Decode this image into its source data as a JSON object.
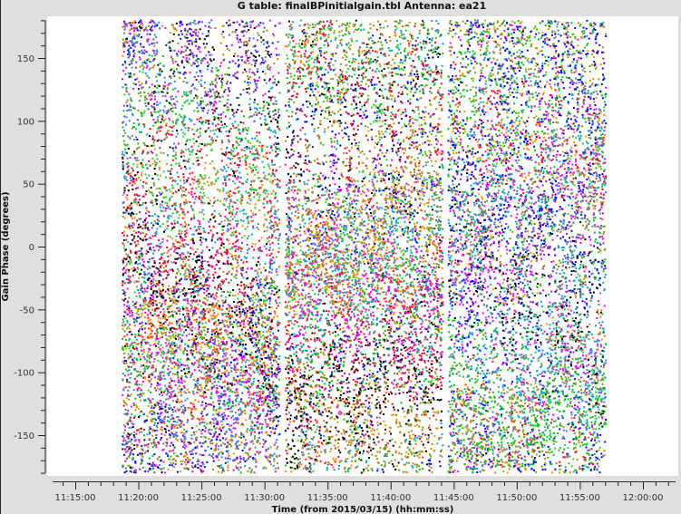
{
  "chart_data": {
    "type": "scatter",
    "title": "G table: finalBPinitialgain.tbl   Antenna: ea21",
    "xlabel": "Time (from 2015/03/15) (hh:mm:ss)",
    "ylabel": "Gain Phase (degrees)",
    "xlim": [
      "11:13:10",
      "12:02:30"
    ],
    "ylim": [
      -180,
      180
    ],
    "x_ticks": [
      "11:15:00",
      "11:20:00",
      "11:25:00",
      "11:30:00",
      "11:35:00",
      "11:40:00",
      "11:45:00",
      "11:50:00",
      "11:55:00",
      "12:00:00"
    ],
    "y_ticks": [
      150,
      100,
      50,
      0,
      -50,
      -100,
      -150
    ],
    "grid": false,
    "legend": "none",
    "scan_segments": [
      {
        "start": "11:18:40",
        "end": "11:31:10"
      },
      {
        "start": "11:31:35",
        "end": "11:44:05"
      },
      {
        "start": "11:44:30",
        "end": "11:57:00"
      }
    ],
    "phase_range": [
      -180,
      180
    ],
    "series_colors": [
      "#0000ff",
      "#00cc00",
      "#ff00ff",
      "#ff8c00",
      "#00aaaa",
      "#8a2be2",
      "#000000",
      "#32cd32",
      "#ff0033",
      "#1e90ff",
      "#b8860b"
    ]
  }
}
